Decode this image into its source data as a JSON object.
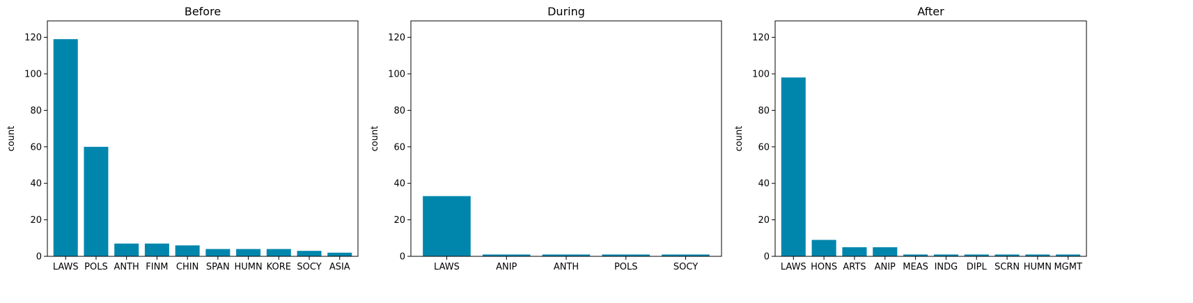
{
  "chart_data": [
    {
      "type": "bar",
      "title": "Before",
      "xlabel": "",
      "ylabel": "count",
      "ylim": [
        0,
        129
      ],
      "yticks": [
        0,
        20,
        40,
        60,
        80,
        100,
        120
      ],
      "categories": [
        "LAWS",
        "POLS",
        "ANTH",
        "FINM",
        "CHIN",
        "SPAN",
        "HUMN",
        "KORE",
        "SOCY",
        "ASIA"
      ],
      "values": [
        119,
        60,
        7,
        7,
        6,
        4,
        4,
        4,
        3,
        2
      ],
      "color": "#0086AD",
      "grid": false
    },
    {
      "type": "bar",
      "title": "During",
      "xlabel": "",
      "ylabel": "count",
      "ylim": [
        0,
        129
      ],
      "yticks": [
        0,
        20,
        40,
        60,
        80,
        100,
        120
      ],
      "categories": [
        "LAWS",
        "ANIP",
        "ANTH",
        "POLS",
        "SOCY"
      ],
      "values": [
        33,
        1,
        1,
        1,
        1
      ],
      "color": "#0086AD",
      "grid": false
    },
    {
      "type": "bar",
      "title": "After",
      "xlabel": "",
      "ylabel": "count",
      "ylim": [
        0,
        129
      ],
      "yticks": [
        0,
        20,
        40,
        60,
        80,
        100,
        120
      ],
      "categories": [
        "LAWS",
        "HONS",
        "ARTS",
        "ANIP",
        "MEAS",
        "INDG",
        "DIPL",
        "SCRN",
        "HUMN",
        "MGMT"
      ],
      "values": [
        98,
        9,
        5,
        5,
        1,
        1,
        1,
        1,
        1,
        1
      ],
      "color": "#0086AD",
      "grid": false
    }
  ]
}
